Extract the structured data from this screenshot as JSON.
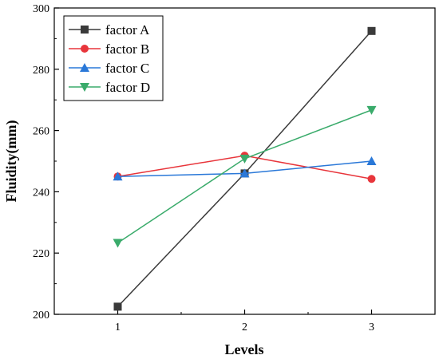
{
  "chart_data": {
    "type": "line",
    "x": [
      1,
      2,
      3
    ],
    "x_tick_labels": [
      "1",
      "2",
      "3"
    ],
    "xlabel": "Levels",
    "ylabel": "Fluidity(mm)",
    "xlim": [
      0.5,
      3.5
    ],
    "ylim": [
      200,
      300
    ],
    "y_ticks": [
      200,
      220,
      240,
      260,
      280,
      300
    ],
    "grid": false,
    "legend_position": "top-left",
    "series": [
      {
        "name": "factor A",
        "values": [
          202.5,
          246,
          292.5
        ],
        "color": "#3a3a3a",
        "marker": "square"
      },
      {
        "name": "factor B",
        "values": [
          245,
          251.8,
          244.2
        ],
        "color": "#e8353b",
        "marker": "circle"
      },
      {
        "name": "factor C",
        "values": [
          245,
          246,
          250
        ],
        "color": "#2a78d8",
        "marker": "triangle-up"
      },
      {
        "name": "factor D",
        "values": [
          223.3,
          250.8,
          266.7
        ],
        "color": "#3aab6b",
        "marker": "triangle-down"
      }
    ]
  }
}
